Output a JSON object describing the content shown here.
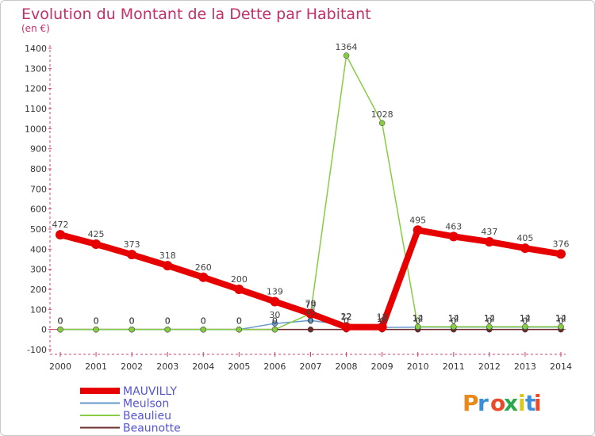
{
  "chart_data": {
    "type": "line",
    "title": "Evolution du Montant de la Dette par Habitant",
    "subtitle": "(en €)",
    "ylim": [
      -100,
      1400
    ],
    "yticks": [
      -100,
      0,
      100,
      200,
      300,
      400,
      500,
      600,
      700,
      800,
      900,
      1000,
      1100,
      1200,
      1300,
      1400
    ],
    "x": [
      "2000",
      "2001",
      "2002",
      "2003",
      "2004",
      "2005",
      "2006",
      "2007",
      "2008",
      "2009",
      "2010",
      "2011",
      "2012",
      "2013",
      "2014"
    ],
    "legend_position": "bottom-left",
    "grid": false,
    "series": [
      {
        "name": "MAUVILLY",
        "color": "#e60000",
        "values": [
          472,
          425,
          373,
          318,
          260,
          200,
          139,
          79,
          12,
          12,
          495,
          463,
          437,
          405,
          376
        ],
        "labels": [
          "472",
          "425",
          "373",
          "318",
          "260",
          "200",
          "139",
          "79",
          "12",
          "12",
          "495",
          "463",
          "437",
          "405",
          "376"
        ]
      },
      {
        "name": "Meulson",
        "color": "#6699cc",
        "values": [
          0,
          0,
          0,
          0,
          0,
          0,
          30,
          45,
          22,
          10,
          12,
          12,
          12,
          12,
          12
        ],
        "labels": [
          "0",
          "0",
          "0",
          "0",
          "0",
          "0",
          "30",
          "45",
          "22",
          "10",
          "12",
          "12",
          "12",
          "12",
          "12"
        ]
      },
      {
        "name": "Beaulieu",
        "color": "#88cc44",
        "values": [
          0,
          0,
          0,
          0,
          0,
          0,
          0,
          79,
          1364,
          1028,
          14,
          14,
          14,
          14,
          14
        ],
        "labels": [
          "0",
          "0",
          "0",
          "0",
          "0",
          "0",
          "0",
          "79",
          "1364",
          "1028",
          "14",
          "14",
          "14",
          "14",
          "14"
        ]
      },
      {
        "name": "Beaunotte",
        "color": "#6b2b2b",
        "values": [
          0,
          0,
          0,
          0,
          0,
          0,
          0,
          0,
          0,
          0,
          0,
          0,
          0,
          0,
          0
        ],
        "labels": [
          "0",
          "0",
          "0",
          "0",
          "0",
          "0",
          "0",
          "0",
          "0",
          "0",
          "0",
          "0",
          "0",
          "0",
          "0"
        ]
      }
    ]
  },
  "logo": {
    "text": "Proxiti",
    "colors": [
      "#e88a1a",
      "#3a8fd8",
      "#e84a2a",
      "#2aa84a",
      "#d8c81a",
      "#3a8fd8",
      "#e84a2a"
    ]
  }
}
